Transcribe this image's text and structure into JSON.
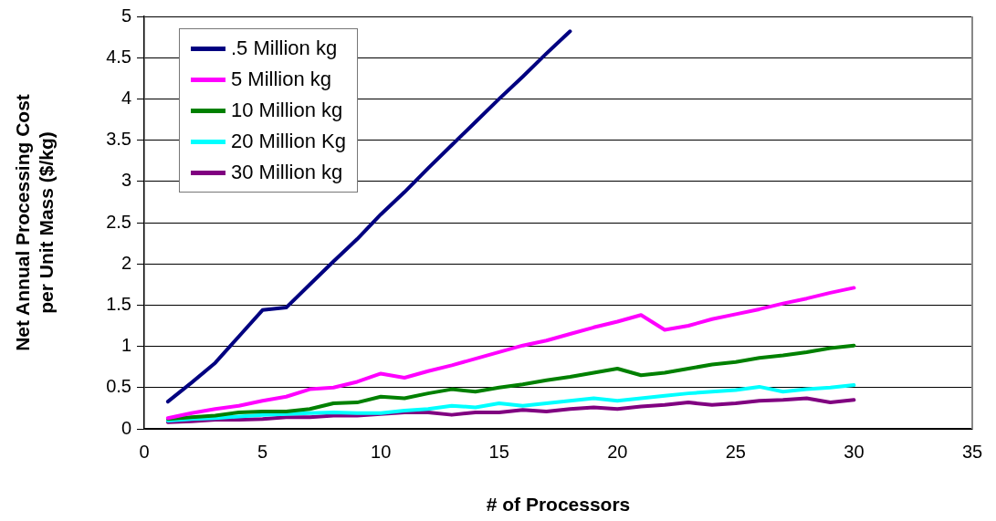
{
  "chart_data": {
    "type": "line",
    "xlabel": "# of Processors",
    "ylabel": "Net Annual Processing Cost\nper Unit Mass ($/kg)",
    "x": [
      1,
      2,
      3,
      4,
      5,
      6,
      7,
      8,
      9,
      10,
      11,
      12,
      13,
      14,
      15,
      16,
      17,
      18,
      19,
      20,
      21,
      22,
      23,
      24,
      25,
      26,
      27,
      28,
      29,
      30
    ],
    "xlim": [
      0,
      35
    ],
    "xticks": [
      0,
      5,
      10,
      15,
      20,
      25,
      30,
      35
    ],
    "ylim": [
      0,
      5
    ],
    "yticks": [
      0,
      0.5,
      1,
      1.5,
      2,
      2.5,
      3,
      3.5,
      4,
      4.5,
      5
    ],
    "grid": "y",
    "legend": "top left",
    "marker": "none",
    "line_style": "solid",
    "series": [
      {
        "name": ".5 Million kg",
        "color": "#000080",
        "values": [
          0.33,
          0.56,
          0.8,
          1.12,
          1.44,
          1.47,
          1.75,
          2.03,
          2.3,
          2.6,
          2.87,
          3.16,
          3.44,
          3.72,
          4.0,
          4.27,
          4.55,
          4.82,
          null,
          null,
          null,
          null,
          null,
          null,
          null,
          null,
          null,
          null,
          null,
          null
        ]
      },
      {
        "name": "5 Million kg",
        "color": "#ff00ff",
        "values": [
          0.13,
          0.19,
          0.24,
          0.28,
          0.34,
          0.39,
          0.48,
          0.5,
          0.57,
          0.67,
          0.62,
          0.7,
          0.77,
          0.85,
          0.93,
          1.01,
          1.07,
          1.15,
          1.23,
          1.3,
          1.38,
          1.2,
          1.25,
          1.33,
          1.39,
          1.45,
          1.52,
          1.58,
          1.65,
          1.71
        ]
      },
      {
        "name": "10 Million kg",
        "color": "#008000",
        "values": [
          0.12,
          0.14,
          0.16,
          0.2,
          0.21,
          0.21,
          0.24,
          0.31,
          0.32,
          0.39,
          0.37,
          0.43,
          0.48,
          0.45,
          0.5,
          0.54,
          0.59,
          0.63,
          0.68,
          0.73,
          0.65,
          0.68,
          0.73,
          0.78,
          0.81,
          0.86,
          0.89,
          0.93,
          0.98,
          1.01
        ]
      },
      {
        "name": "20 Million Kg",
        "color": "#00ffff",
        "values": [
          0.1,
          0.12,
          0.13,
          0.15,
          0.17,
          0.18,
          0.19,
          0.2,
          0.19,
          0.19,
          0.22,
          0.24,
          0.28,
          0.26,
          0.31,
          0.28,
          0.31,
          0.34,
          0.37,
          0.34,
          0.37,
          0.4,
          0.43,
          0.45,
          0.47,
          0.51,
          0.45,
          0.48,
          0.5,
          0.53
        ]
      },
      {
        "name": "30 Million kg",
        "color": "#800080",
        "values": [
          0.08,
          0.09,
          0.11,
          0.11,
          0.12,
          0.14,
          0.14,
          0.16,
          0.16,
          0.18,
          0.2,
          0.2,
          0.17,
          0.2,
          0.2,
          0.23,
          0.21,
          0.24,
          0.26,
          0.24,
          0.27,
          0.29,
          0.32,
          0.29,
          0.31,
          0.34,
          0.35,
          0.37,
          0.32,
          0.35
        ]
      }
    ]
  }
}
